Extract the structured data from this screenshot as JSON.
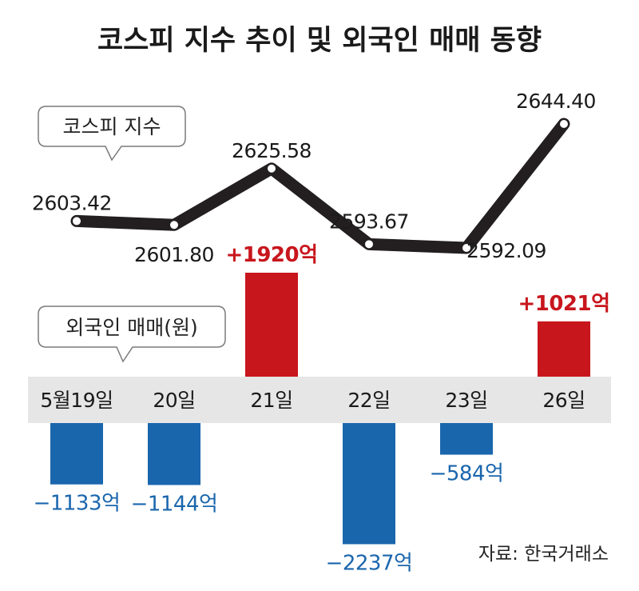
{
  "title": "코스피 지수 추이 및 외국인 매매 동향",
  "source": "자료: 한국거래소",
  "colors": {
    "line": "#231f20",
    "positive": "#c8161d",
    "negative": "#1a66ad",
    "band": "#e6e6e6"
  },
  "chart_data": [
    {
      "type": "line",
      "title": "",
      "legend": "코스피 지수",
      "categories": [
        "5월19일",
        "20일",
        "21일",
        "22일",
        "23일",
        "26일"
      ],
      "values": [
        2603.42,
        2601.8,
        2625.58,
        2593.67,
        2592.09,
        2644.4
      ],
      "labels": [
        "2603.42",
        "2601.80",
        "2625.58",
        "2593.67",
        "2592.09",
        "2644.40"
      ],
      "grid": false
    },
    {
      "type": "bar",
      "title": "",
      "legend": "외국인 매매(원)",
      "categories": [
        "5월19일",
        "20일",
        "21일",
        "22일",
        "23일",
        "26일"
      ],
      "values": [
        -1133,
        -1144,
        1920,
        -2237,
        -584,
        1021
      ],
      "labels": [
        "−1133억",
        "−1144억",
        "+1920억",
        "−2237억",
        "−584억",
        "+1021억"
      ],
      "grid": false
    }
  ]
}
